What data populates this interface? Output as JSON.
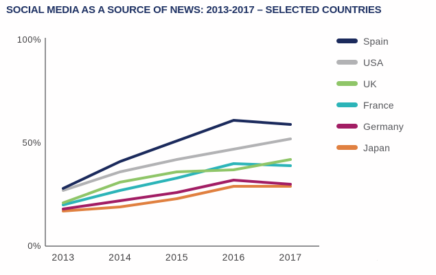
{
  "title": "SOCIAL MEDIA AS A SOURCE OF NEWS: 2013-2017 – SELECTED COUNTRIES",
  "title_color": "#1e3163",
  "axis_color": "#6d6e71",
  "watermark_text": "·",
  "chart_data": {
    "type": "line",
    "title": "SOCIAL MEDIA AS A SOURCE OF NEWS: 2013-2017 – SELECTED COUNTRIES",
    "xlabel": "",
    "ylabel": "",
    "ylim": [
      0,
      100
    ],
    "grid": false,
    "legend_position": "right",
    "categories": [
      "2013",
      "2014",
      "2015",
      "2016",
      "2017"
    ],
    "yticks": [
      {
        "value": 0,
        "label": "0%"
      },
      {
        "value": 50,
        "label": "50%"
      },
      {
        "value": 100,
        "label": "100%"
      }
    ],
    "series": [
      {
        "name": "Spain",
        "color": "#1b2a5c",
        "values": [
          28,
          41,
          51,
          61,
          59
        ]
      },
      {
        "name": "USA",
        "color": "#b2b2b4",
        "values": [
          27,
          36,
          42,
          47,
          52
        ]
      },
      {
        "name": "UK",
        "color": "#8fc568",
        "values": [
          21,
          31,
          36,
          37,
          42
        ]
      },
      {
        "name": "France",
        "color": "#2cb4b8",
        "values": [
          20,
          27,
          33,
          40,
          39
        ]
      },
      {
        "name": "Germany",
        "color": "#a21d64",
        "values": [
          18,
          22,
          26,
          32,
          30
        ]
      },
      {
        "name": "Japan",
        "color": "#e08040",
        "values": [
          17,
          19,
          23,
          29,
          29
        ]
      }
    ]
  }
}
